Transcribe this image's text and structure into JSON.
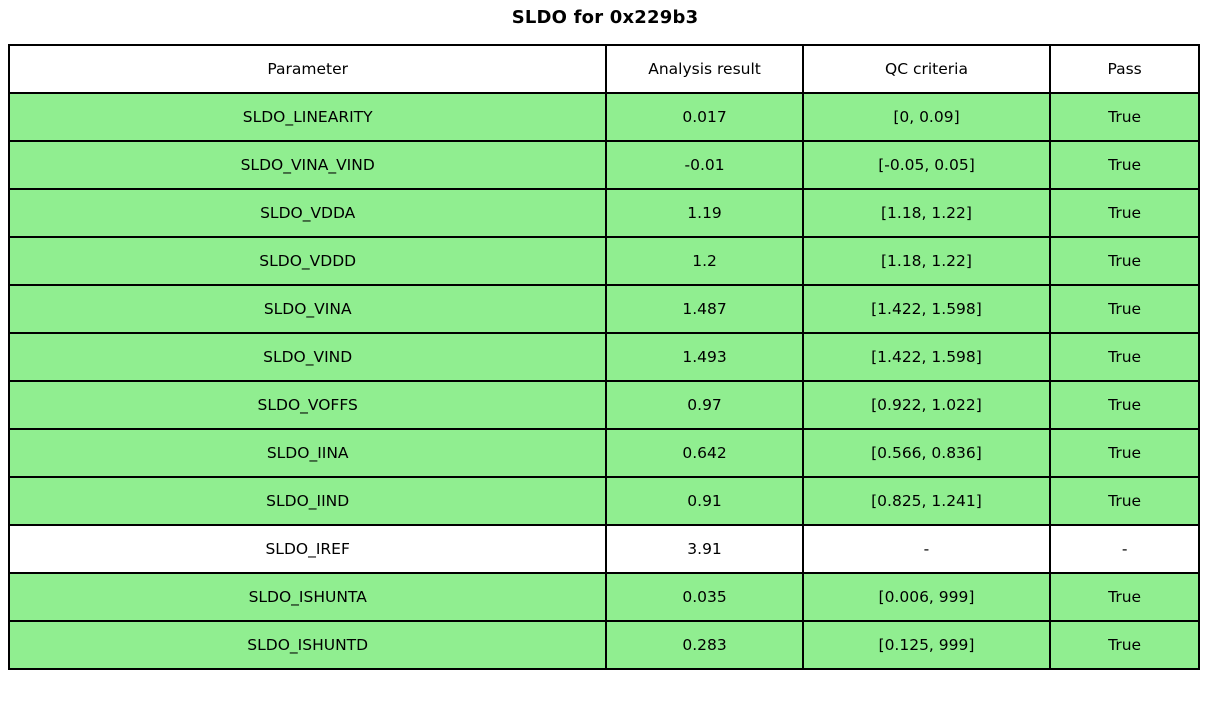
{
  "title": "SLDO for 0x229b3",
  "colors": {
    "pass_row_green": "#90ee90",
    "neutral_row_white": "#ffffff",
    "border_black": "#000000",
    "text_black": "#000000"
  },
  "table": {
    "columns": [
      "Parameter",
      "Analysis result",
      "QC criteria",
      "Pass"
    ],
    "rows": [
      {
        "parameter": "SLDO_LINEARITY",
        "analysis_result": "0.017",
        "qc_criteria": "[0, 0.09]",
        "pass": "True",
        "highlight": true
      },
      {
        "parameter": "SLDO_VINA_VIND",
        "analysis_result": "-0.01",
        "qc_criteria": "[-0.05, 0.05]",
        "pass": "True",
        "highlight": true
      },
      {
        "parameter": "SLDO_VDDA",
        "analysis_result": "1.19",
        "qc_criteria": "[1.18, 1.22]",
        "pass": "True",
        "highlight": true
      },
      {
        "parameter": "SLDO_VDDD",
        "analysis_result": "1.2",
        "qc_criteria": "[1.18, 1.22]",
        "pass": "True",
        "highlight": true
      },
      {
        "parameter": "SLDO_VINA",
        "analysis_result": "1.487",
        "qc_criteria": "[1.422, 1.598]",
        "pass": "True",
        "highlight": true
      },
      {
        "parameter": "SLDO_VIND",
        "analysis_result": "1.493",
        "qc_criteria": "[1.422, 1.598]",
        "pass": "True",
        "highlight": true
      },
      {
        "parameter": "SLDO_VOFFS",
        "analysis_result": "0.97",
        "qc_criteria": "[0.922, 1.022]",
        "pass": "True",
        "highlight": true
      },
      {
        "parameter": "SLDO_IINA",
        "analysis_result": "0.642",
        "qc_criteria": "[0.566, 0.836]",
        "pass": "True",
        "highlight": true
      },
      {
        "parameter": "SLDO_IIND",
        "analysis_result": "0.91",
        "qc_criteria": "[0.825, 1.241]",
        "pass": "True",
        "highlight": true
      },
      {
        "parameter": "SLDO_IREF",
        "analysis_result": "3.91",
        "qc_criteria": "-",
        "pass": "-",
        "highlight": false
      },
      {
        "parameter": "SLDO_ISHUNTA",
        "analysis_result": "0.035",
        "qc_criteria": "[0.006, 999]",
        "pass": "True",
        "highlight": true
      },
      {
        "parameter": "SLDO_ISHUNTD",
        "analysis_result": "0.283",
        "qc_criteria": "[0.125, 999]",
        "pass": "True",
        "highlight": true
      }
    ]
  }
}
